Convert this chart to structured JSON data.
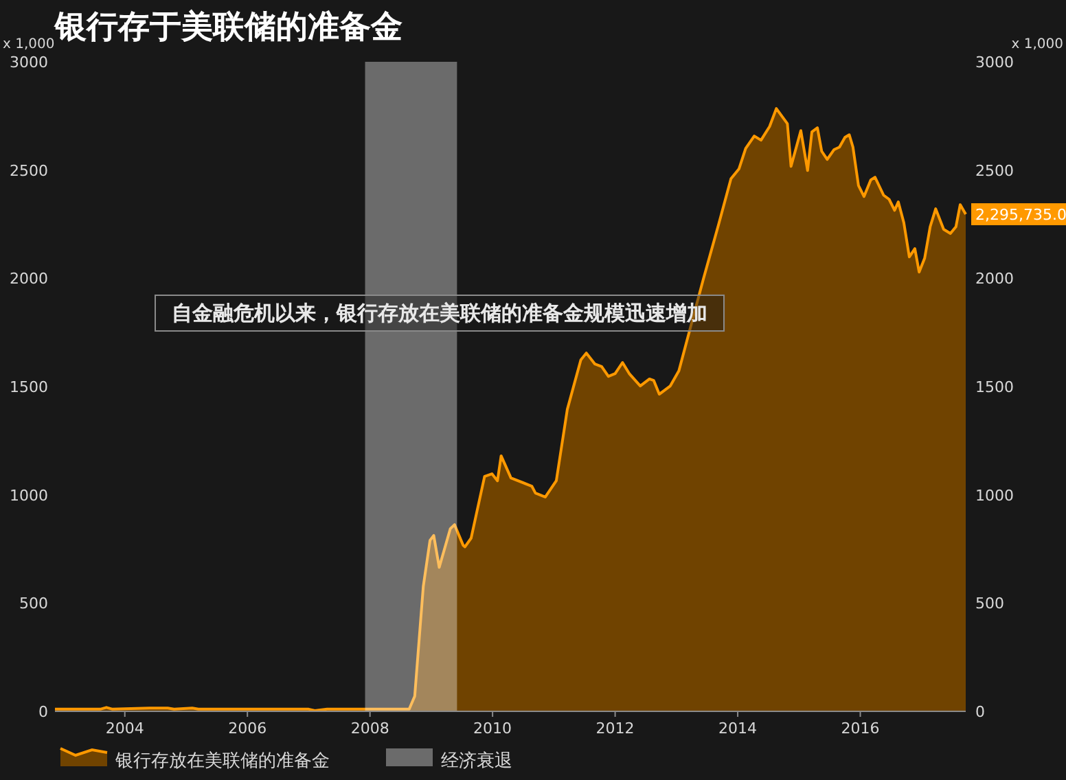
{
  "chart_data": {
    "type": "area",
    "title": "银行存于美联储的准备金",
    "ylabel": "x 1,000",
    "y2label": "x 1,000",
    "annotations": [
      "自金融危机以来，银行存放在美联储的准备金规模迅速增加",
      "2,295,735.0"
    ],
    "x": [
      2002.86,
      2003.6,
      2003.7,
      2003.8,
      2004.4,
      2004.7,
      2004.8,
      2005.1,
      2005.2,
      2007.0,
      2007.1,
      2007.3,
      2008.64,
      2008.73,
      2008.87,
      2008.98,
      2009.04,
      2009.13,
      2009.31,
      2009.38,
      2009.52,
      2009.55,
      2009.65,
      2009.87,
      2009.99,
      2010.08,
      2010.14,
      2010.3,
      2010.64,
      2010.7,
      2010.86,
      2011.04,
      2011.22,
      2011.44,
      2011.53,
      2011.67,
      2011.78,
      2011.89,
      2012.0,
      2012.12,
      2012.23,
      2012.41,
      2012.56,
      2012.63,
      2012.72,
      2012.9,
      2013.04,
      2013.44,
      2013.69,
      2013.89,
      2014.02,
      2014.13,
      2014.27,
      2014.38,
      2014.52,
      2014.63,
      2014.81,
      2014.87,
      2015.03,
      2015.14,
      2015.21,
      2015.3,
      2015.37,
      2015.46,
      2015.57,
      2015.66,
      2015.75,
      2015.82,
      2015.88,
      2015.97,
      2016.06,
      2016.17,
      2016.24,
      2016.38,
      2016.47,
      2016.56,
      2016.62,
      2016.71,
      2016.8,
      2016.89,
      2016.96,
      2017.05,
      2017.14,
      2017.23,
      2017.36,
      2017.47,
      2017.56,
      2017.63,
      2017.72
    ],
    "series": [
      {
        "name": "银行存放在美联储的准备金",
        "color": "#ff9900",
        "values": [
          10,
          10,
          18,
          10,
          15,
          15,
          10,
          15,
          10,
          10,
          3,
          10,
          10,
          70,
          577,
          790,
          812,
          665,
          843,
          862,
          767,
          760,
          800,
          1085,
          1097,
          1065,
          1180,
          1078,
          1040,
          1008,
          990,
          1065,
          1395,
          1623,
          1655,
          1604,
          1592,
          1547,
          1560,
          1611,
          1560,
          1503,
          1535,
          1528,
          1465,
          1503,
          1573,
          1997,
          2251,
          2460,
          2505,
          2600,
          2657,
          2638,
          2701,
          2784,
          2714,
          2517,
          2682,
          2498,
          2676,
          2695,
          2587,
          2549,
          2594,
          2606,
          2651,
          2663,
          2606,
          2429,
          2378,
          2454,
          2467,
          2384,
          2365,
          2314,
          2353,
          2257,
          2099,
          2137,
          2029,
          2093,
          2238,
          2321,
          2226,
          2207,
          2238,
          2340,
          2296
        ]
      }
    ],
    "bands": [
      {
        "axis": "x",
        "from": 2007.92,
        "to": 2009.42,
        "label": "经济衰退",
        "color": "#6b6b6b"
      }
    ],
    "xlim": [
      2002.86,
      2017.72
    ],
    "xticks": [
      2004,
      2006,
      2008,
      2010,
      2012,
      2014,
      2016
    ],
    "ylim": [
      0,
      3000
    ],
    "yticks": [
      0,
      500,
      1000,
      1500,
      2000,
      2500,
      3000
    ],
    "y2lim": [
      0,
      3000
    ],
    "y2ticks": [
      0,
      500,
      1000,
      1500,
      2000,
      2500,
      3000
    ],
    "legend": "bottom"
  }
}
